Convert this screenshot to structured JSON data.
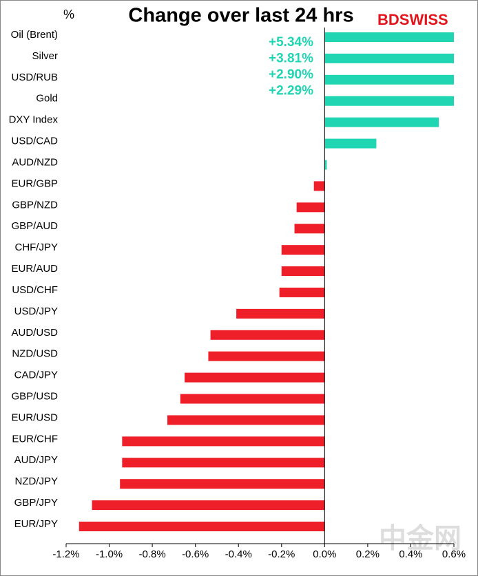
{
  "chart_data": {
    "type": "hbar",
    "title": "Change over last 24 hrs",
    "unit_label": "%",
    "logo": "BDSWISS",
    "watermark": "中金网",
    "categories": [
      "Oil (Brent)",
      "Silver",
      "USD/RUB",
      "Gold",
      "DXY Index",
      "USD/CAD",
      "AUD/NZD",
      "EUR/GBP",
      "GBP/NZD",
      "GBP/AUD",
      "CHF/JPY",
      "EUR/AUD",
      "USD/CHF",
      "USD/JPY",
      "AUD/USD",
      "NZD/USD",
      "CAD/JPY",
      "GBP/USD",
      "EUR/USD",
      "EUR/CHF",
      "AUD/JPY",
      "NZD/JPY",
      "GBP/JPY",
      "EUR/JPY"
    ],
    "values": [
      5.34,
      3.81,
      2.9,
      2.29,
      0.53,
      0.24,
      0.01,
      -0.05,
      -0.13,
      -0.14,
      -0.2,
      -0.2,
      -0.21,
      -0.41,
      -0.53,
      -0.54,
      -0.65,
      -0.67,
      -0.73,
      -0.94,
      -0.94,
      -0.95,
      -1.08,
      -1.14
    ],
    "value_labels": [
      "+5.34%",
      "+3.81%",
      "+2.90%",
      "+2.29%",
      null,
      null,
      null,
      null,
      null,
      null,
      null,
      null,
      null,
      null,
      null,
      null,
      null,
      null,
      null,
      null,
      null,
      null,
      null,
      null
    ],
    "positive_color": "#1fd5b2",
    "negative_color": "#ee1f29",
    "xlim": [
      -1.2,
      0.6
    ],
    "xticks": [
      {
        "value": -1.2,
        "label": "-1.2%"
      },
      {
        "value": -1.0,
        "label": "-1.0%"
      },
      {
        "value": -0.8,
        "label": "-0.8%"
      },
      {
        "value": -0.6,
        "label": "-0.6%"
      },
      {
        "value": -0.4,
        "label": "-0.4%"
      },
      {
        "value": -0.2,
        "label": "-0.2%"
      },
      {
        "value": 0,
        "label": "0.0%"
      },
      {
        "value": 0.2,
        "label": "0.2%"
      },
      {
        "value": 0.4,
        "label": "0.4%"
      },
      {
        "value": 0.6,
        "label": "0.6%"
      }
    ]
  }
}
